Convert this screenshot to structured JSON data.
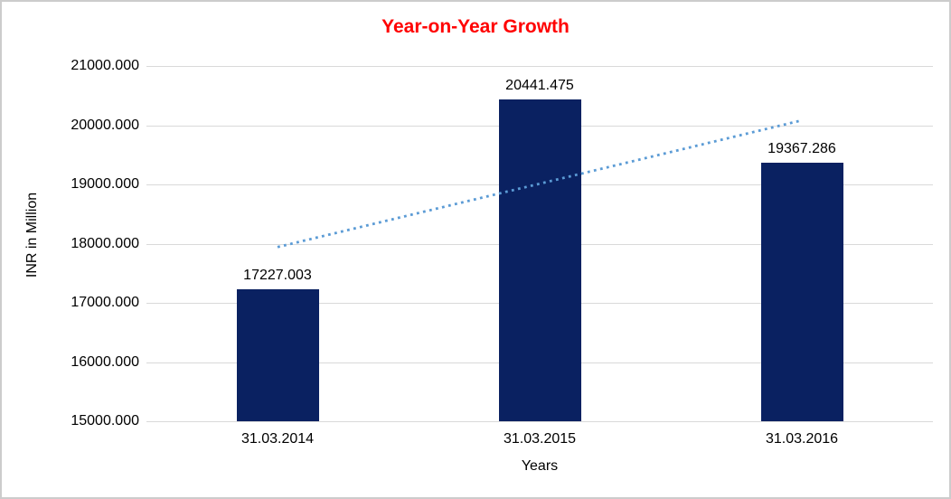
{
  "chart": {
    "background": "#FFFFFF",
    "border_color": "#CCCCCC",
    "text_color": "#000000"
  },
  "chart_data": {
    "type": "bar",
    "title": "Year-on-Year Growth",
    "title_color": "#FF0000",
    "xlabel": "Years",
    "ylabel": "INR in Million",
    "categories": [
      "31.03.2014",
      "31.03.2015",
      "31.03.2016"
    ],
    "values": [
      17227.003,
      20441.475,
      19367.286
    ],
    "data_labels": [
      "17227.003",
      "20441.475",
      "19367.286"
    ],
    "ylim": [
      15000,
      21000
    ],
    "ytick_step": 1000,
    "ytick_labels": [
      "15000.000",
      "16000.000",
      "17000.000",
      "18000.000",
      "19000.000",
      "20000.000",
      "21000.000"
    ],
    "grid": true,
    "legend": "none",
    "bar_color": "#0A2161",
    "gridline_color": "#D9D9D9",
    "trendline": {
      "type": "linear",
      "style": "dotted",
      "color": "#5B9BD5",
      "start_value": 17941.8,
      "end_value": 20082.1
    }
  }
}
